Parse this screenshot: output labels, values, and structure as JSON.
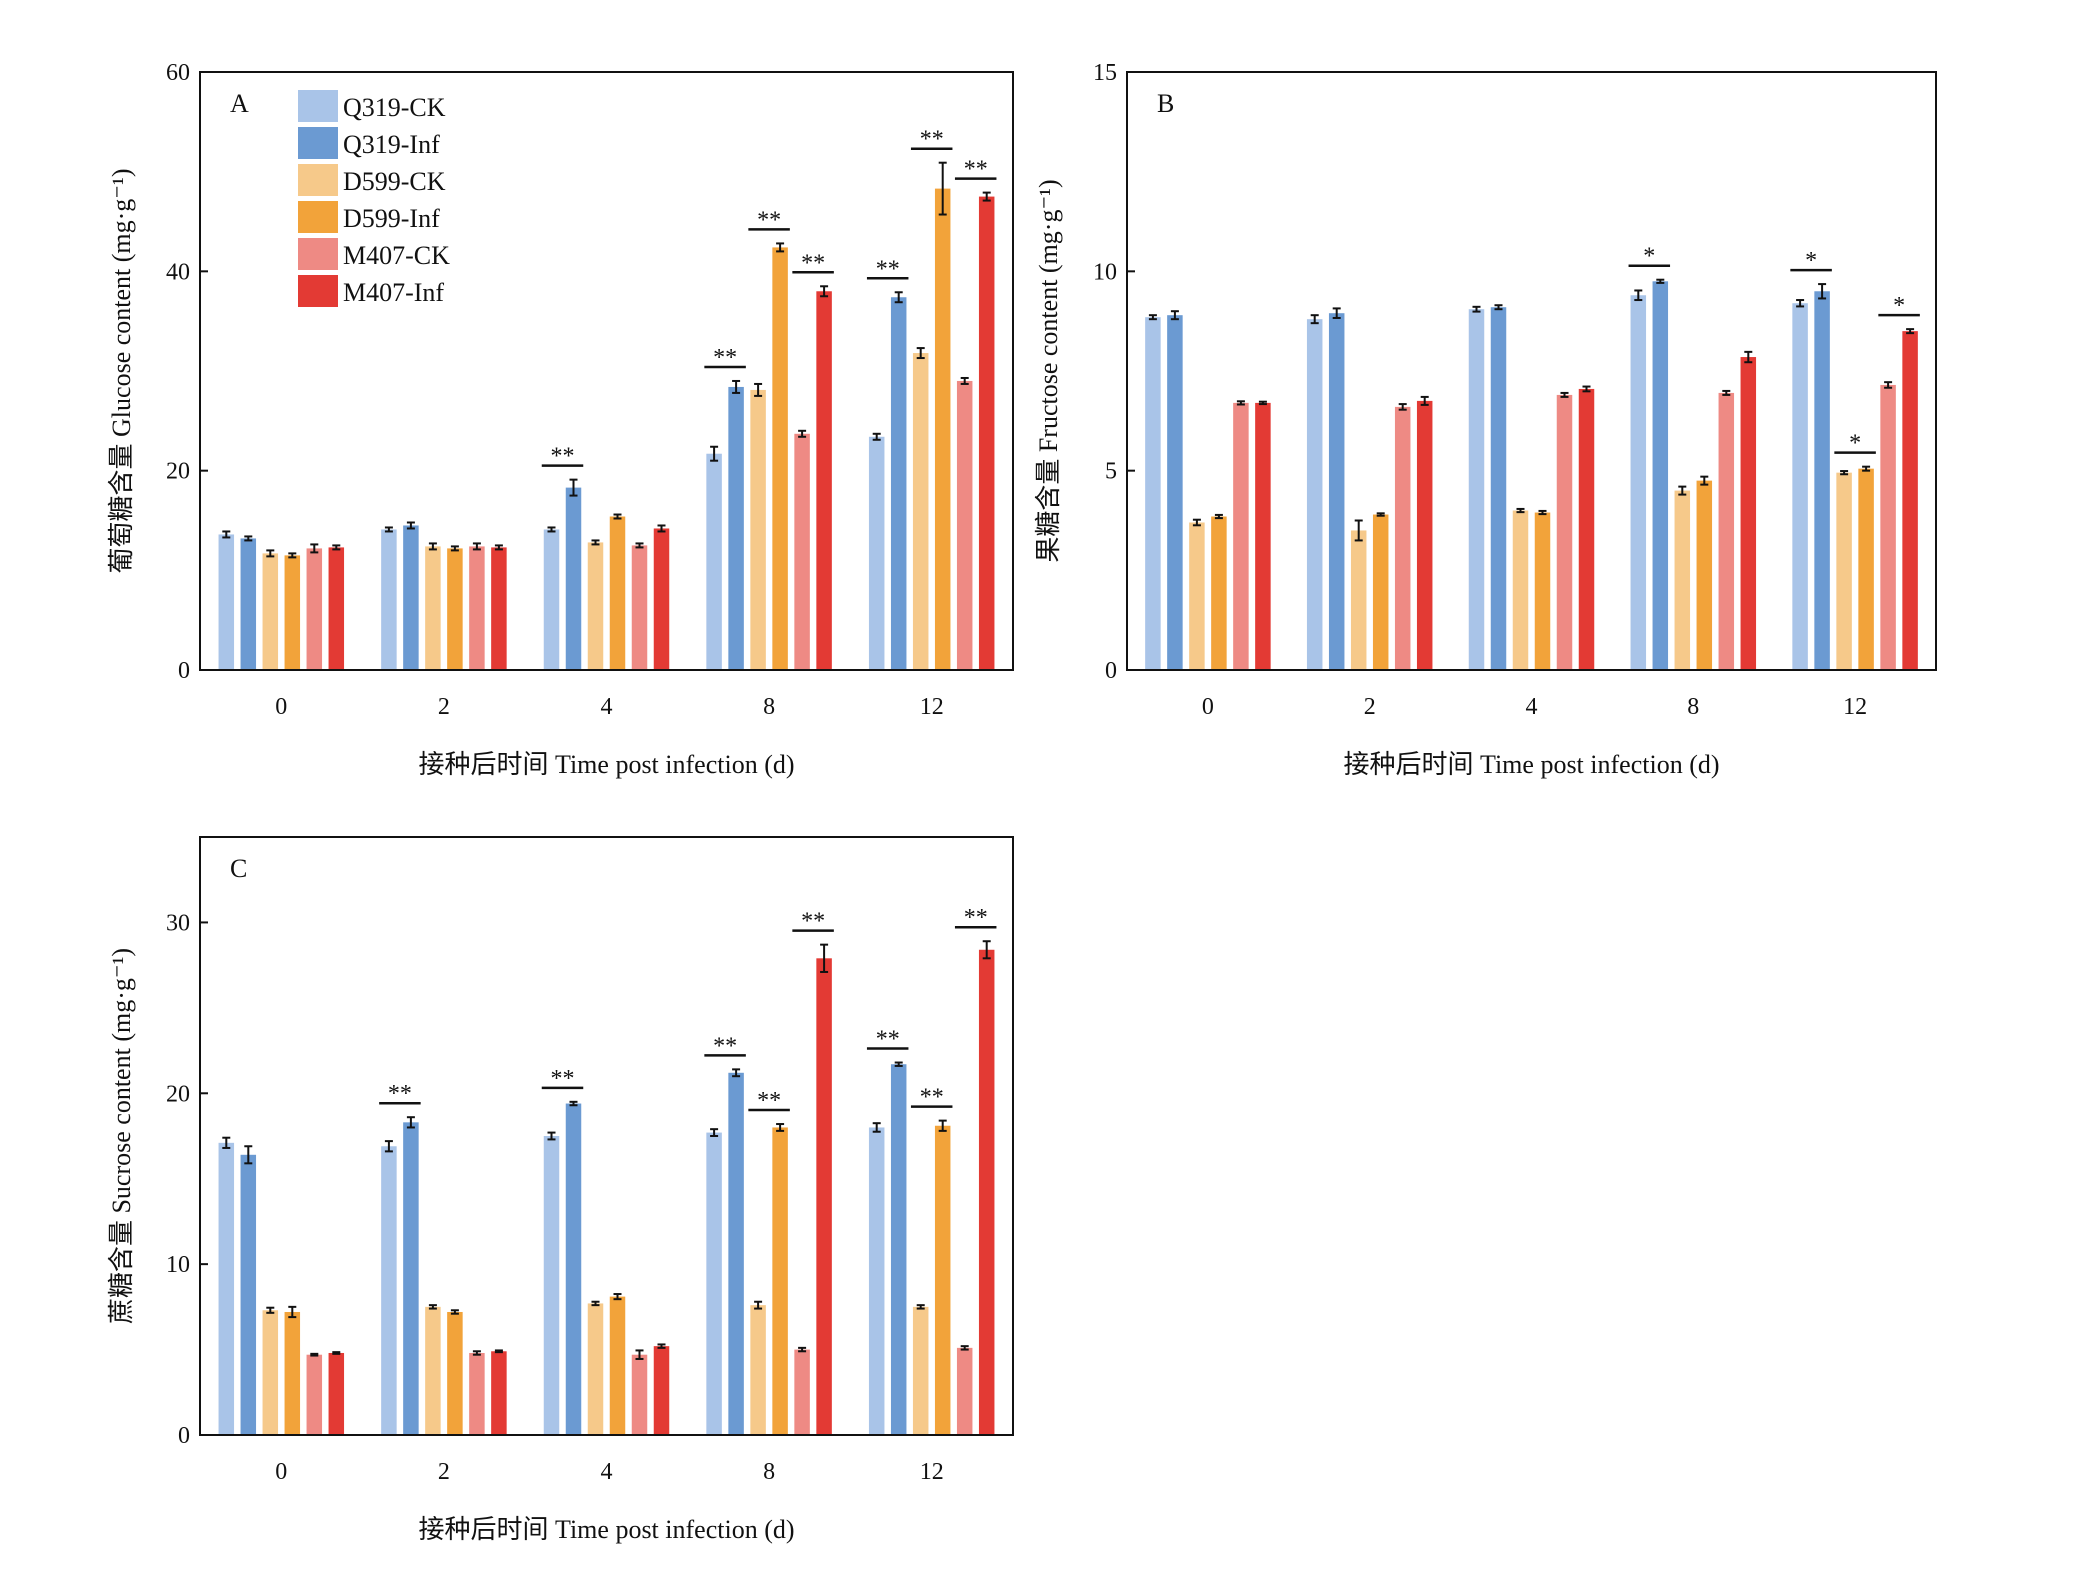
{
  "legend": [
    "Q319-CK",
    "Q319-Inf",
    "D599-CK",
    "D599-Inf",
    "M407-CK",
    "M407-Inf"
  ],
  "colors": [
    "#a9c4e8",
    "#6b9ad2",
    "#f6c98a",
    "#f2a33a",
    "#ee8a84",
    "#e33a34"
  ],
  "chart_data": [
    {
      "type": "bar",
      "panel": "A",
      "ylabel": "葡萄糖含量 Glucose content (mg·g⁻¹)",
      "xlabel": "接种后时间 Time post infection (d)",
      "categories": [
        "0",
        "2",
        "4",
        "8",
        "12"
      ],
      "ylim": [
        0,
        60
      ],
      "yticks": [
        "0",
        "20",
        "40",
        "60"
      ],
      "series": [
        {
          "name": "Q319-CK",
          "values": [
            13.6,
            14.1,
            14.1,
            21.7,
            23.4
          ],
          "errors": [
            0.3,
            0.2,
            0.2,
            0.7,
            0.3
          ]
        },
        {
          "name": "Q319-Inf",
          "values": [
            13.2,
            14.5,
            18.3,
            28.4,
            37.4
          ],
          "errors": [
            0.2,
            0.3,
            0.8,
            0.6,
            0.5
          ]
        },
        {
          "name": "D599-CK",
          "values": [
            11.7,
            12.4,
            12.8,
            28.1,
            31.8
          ],
          "errors": [
            0.3,
            0.3,
            0.2,
            0.6,
            0.5
          ]
        },
        {
          "name": "D599-Inf",
          "values": [
            11.5,
            12.2,
            15.4,
            42.4,
            48.3
          ],
          "errors": [
            0.2,
            0.2,
            0.2,
            0.4,
            2.6
          ]
        },
        {
          "name": "M407-CK",
          "values": [
            12.2,
            12.4,
            12.5,
            23.7,
            29.0
          ],
          "errors": [
            0.4,
            0.3,
            0.2,
            0.3,
            0.3
          ]
        },
        {
          "name": "M407-Inf",
          "values": [
            12.3,
            12.3,
            14.2,
            38.0,
            47.5
          ],
          "errors": [
            0.2,
            0.2,
            0.3,
            0.5,
            0.4
          ]
        }
      ],
      "significance": [
        {
          "category": 2,
          "pair": [
            0,
            1
          ],
          "label": "**"
        },
        {
          "category": 3,
          "pair": [
            0,
            1
          ],
          "label": "**"
        },
        {
          "category": 3,
          "pair": [
            2,
            3
          ],
          "label": "**"
        },
        {
          "category": 3,
          "pair": [
            4,
            5
          ],
          "label": "**"
        },
        {
          "category": 4,
          "pair": [
            0,
            1
          ],
          "label": "**"
        },
        {
          "category": 4,
          "pair": [
            2,
            3
          ],
          "label": "**"
        },
        {
          "category": 4,
          "pair": [
            4,
            5
          ],
          "label": "**"
        }
      ]
    },
    {
      "type": "bar",
      "panel": "B",
      "ylabel": "果糖含量 Fructose content (mg·g⁻¹)",
      "xlabel": "接种后时间 Time post infection (d)",
      "categories": [
        "0",
        "2",
        "4",
        "8",
        "12"
      ],
      "ylim": [
        0,
        15
      ],
      "yticks": [
        "0",
        "5",
        "10",
        "15"
      ],
      "series": [
        {
          "name": "Q319-CK",
          "values": [
            8.85,
            8.8,
            9.05,
            9.4,
            9.2
          ],
          "errors": [
            0.05,
            0.1,
            0.06,
            0.12,
            0.08
          ]
        },
        {
          "name": "Q319-Inf",
          "values": [
            8.9,
            8.95,
            9.1,
            9.75,
            9.5
          ],
          "errors": [
            0.1,
            0.12,
            0.05,
            0.04,
            0.18
          ]
        },
        {
          "name": "D599-CK",
          "values": [
            3.7,
            3.5,
            4.0,
            4.5,
            4.95
          ],
          "errors": [
            0.07,
            0.25,
            0.04,
            0.1,
            0.04
          ]
        },
        {
          "name": "D599-Inf",
          "values": [
            3.85,
            3.9,
            3.95,
            4.75,
            5.05
          ],
          "errors": [
            0.04,
            0.03,
            0.04,
            0.1,
            0.05
          ]
        },
        {
          "name": "M407-CK",
          "values": [
            6.7,
            6.6,
            6.9,
            6.95,
            7.15
          ],
          "errors": [
            0.04,
            0.07,
            0.05,
            0.05,
            0.07
          ]
        },
        {
          "name": "M407-Inf",
          "values": [
            6.7,
            6.75,
            7.05,
            7.85,
            8.5
          ],
          "errors": [
            0.03,
            0.1,
            0.06,
            0.13,
            0.05
          ]
        }
      ],
      "significance": [
        {
          "category": 3,
          "pair": [
            0,
            1
          ],
          "label": "*"
        },
        {
          "category": 4,
          "pair": [
            0,
            1
          ],
          "label": "*"
        },
        {
          "category": 4,
          "pair": [
            2,
            3
          ],
          "label": "*"
        },
        {
          "category": 4,
          "pair": [
            4,
            5
          ],
          "label": "*"
        }
      ]
    },
    {
      "type": "bar",
      "panel": "C",
      "ylabel": "蔗糖含量 Sucrose content (mg·g⁻¹)",
      "xlabel": "接种后时间 Time post infection (d)",
      "categories": [
        "0",
        "2",
        "4",
        "8",
        "12"
      ],
      "ylim": [
        0,
        35
      ],
      "yticks": [
        "0",
        "10",
        "20",
        "30"
      ],
      "series": [
        {
          "name": "Q319-CK",
          "values": [
            17.1,
            16.9,
            17.5,
            17.7,
            18.0
          ],
          "errors": [
            0.3,
            0.3,
            0.2,
            0.2,
            0.25
          ]
        },
        {
          "name": "Q319-Inf",
          "values": [
            16.4,
            18.3,
            19.4,
            21.2,
            21.7
          ],
          "errors": [
            0.5,
            0.3,
            0.1,
            0.2,
            0.1
          ]
        },
        {
          "name": "D599-CK",
          "values": [
            7.3,
            7.5,
            7.7,
            7.6,
            7.5
          ],
          "errors": [
            0.15,
            0.1,
            0.1,
            0.2,
            0.1
          ]
        },
        {
          "name": "D599-Inf",
          "values": [
            7.2,
            7.2,
            8.1,
            18.0,
            18.1
          ],
          "errors": [
            0.3,
            0.1,
            0.15,
            0.2,
            0.3
          ]
        },
        {
          "name": "M407-CK",
          "values": [
            4.7,
            4.8,
            4.7,
            5.0,
            5.1
          ],
          "errors": [
            0.05,
            0.1,
            0.25,
            0.1,
            0.1
          ]
        },
        {
          "name": "M407-Inf",
          "values": [
            4.8,
            4.9,
            5.2,
            27.9,
            28.4
          ],
          "errors": [
            0.05,
            0.05,
            0.1,
            0.8,
            0.5
          ]
        }
      ],
      "significance": [
        {
          "category": 1,
          "pair": [
            0,
            1
          ],
          "label": "**"
        },
        {
          "category": 2,
          "pair": [
            0,
            1
          ],
          "label": "**"
        },
        {
          "category": 3,
          "pair": [
            0,
            1
          ],
          "label": "**"
        },
        {
          "category": 3,
          "pair": [
            2,
            3
          ],
          "label": "**"
        },
        {
          "category": 3,
          "pair": [
            4,
            5
          ],
          "label": "**"
        },
        {
          "category": 4,
          "pair": [
            0,
            1
          ],
          "label": "**"
        },
        {
          "category": 4,
          "pair": [
            2,
            3
          ],
          "label": "**"
        },
        {
          "category": 4,
          "pair": [
            4,
            5
          ],
          "label": "**"
        }
      ]
    }
  ]
}
